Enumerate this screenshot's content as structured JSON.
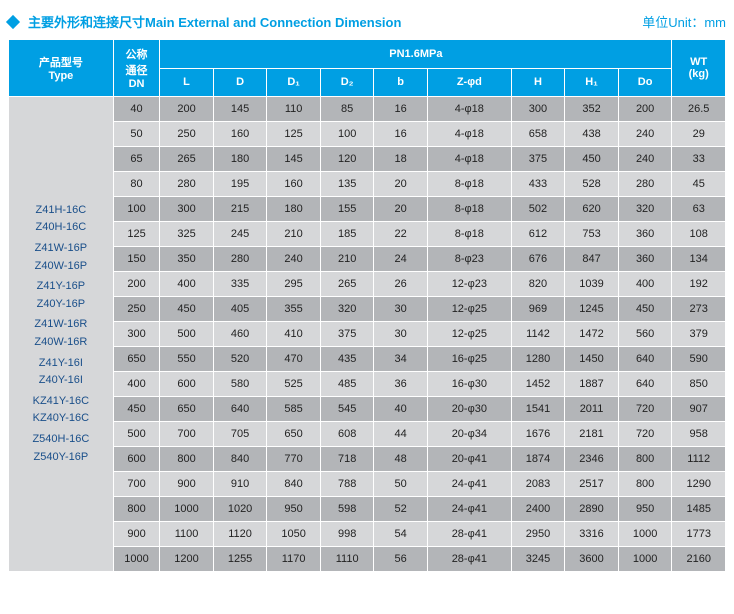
{
  "title": {
    "main": "主要外形和连接尺寸Main External and Connection Dimension",
    "unit": "单位Unit：mm"
  },
  "header": {
    "type": "产品型号\nType",
    "dn": "公称\n通径\nDN",
    "group": "PN1.6MPa",
    "wt": "WT\n(kg)",
    "cols": [
      "L",
      "D",
      "D₁",
      "D₂",
      "b",
      "Z-φd",
      "H",
      "H₁",
      "Do"
    ]
  },
  "types": [
    [
      "Z41H-16C",
      "Z40H-16C"
    ],
    [
      "Z41W-16P",
      "Z40W-16P"
    ],
    [
      "Z41Y-16P",
      "Z40Y-16P"
    ],
    [
      "Z41W-16R",
      "Z40W-16R"
    ],
    [
      "Z41Y-16I",
      "Z40Y-16I"
    ],
    [
      "KZ41Y-16C",
      "KZ40Y-16C"
    ],
    [
      "Z540H-16C",
      "Z540Y-16P"
    ]
  ],
  "rows": [
    {
      "dn": "40",
      "L": "200",
      "D": "145",
      "D1": "110",
      "D2": "85",
      "b": "16",
      "Z": "4-φ18",
      "H": "300",
      "H1": "352",
      "Do": "200",
      "WT": "26.5"
    },
    {
      "dn": "50",
      "L": "250",
      "D": "160",
      "D1": "125",
      "D2": "100",
      "b": "16",
      "Z": "4-φ18",
      "H": "658",
      "H1": "438",
      "Do": "240",
      "WT": "29"
    },
    {
      "dn": "65",
      "L": "265",
      "D": "180",
      "D1": "145",
      "D2": "120",
      "b": "18",
      "Z": "4-φ18",
      "H": "375",
      "H1": "450",
      "Do": "240",
      "WT": "33"
    },
    {
      "dn": "80",
      "L": "280",
      "D": "195",
      "D1": "160",
      "D2": "135",
      "b": "20",
      "Z": "8-φ18",
      "H": "433",
      "H1": "528",
      "Do": "280",
      "WT": "45"
    },
    {
      "dn": "100",
      "L": "300",
      "D": "215",
      "D1": "180",
      "D2": "155",
      "b": "20",
      "Z": "8-φ18",
      "H": "502",
      "H1": "620",
      "Do": "320",
      "WT": "63"
    },
    {
      "dn": "125",
      "L": "325",
      "D": "245",
      "D1": "210",
      "D2": "185",
      "b": "22",
      "Z": "8-φ18",
      "H": "612",
      "H1": "753",
      "Do": "360",
      "WT": "108"
    },
    {
      "dn": "150",
      "L": "350",
      "D": "280",
      "D1": "240",
      "D2": "210",
      "b": "24",
      "Z": "8-φ23",
      "H": "676",
      "H1": "847",
      "Do": "360",
      "WT": "134"
    },
    {
      "dn": "200",
      "L": "400",
      "D": "335",
      "D1": "295",
      "D2": "265",
      "b": "26",
      "Z": "12-φ23",
      "H": "820",
      "H1": "1039",
      "Do": "400",
      "WT": "192"
    },
    {
      "dn": "250",
      "L": "450",
      "D": "405",
      "D1": "355",
      "D2": "320",
      "b": "30",
      "Z": "12-φ25",
      "H": "969",
      "H1": "1245",
      "Do": "450",
      "WT": "273"
    },
    {
      "dn": "300",
      "L": "500",
      "D": "460",
      "D1": "410",
      "D2": "375",
      "b": "30",
      "Z": "12-φ25",
      "H": "1142",
      "H1": "1472",
      "Do": "560",
      "WT": "379"
    },
    {
      "dn": "650",
      "L": "550",
      "D": "520",
      "D1": "470",
      "D2": "435",
      "b": "34",
      "Z": "16-φ25",
      "H": "1280",
      "H1": "1450",
      "Do": "640",
      "WT": "590"
    },
    {
      "dn": "400",
      "L": "600",
      "D": "580",
      "D1": "525",
      "D2": "485",
      "b": "36",
      "Z": "16-φ30",
      "H": "1452",
      "H1": "1887",
      "Do": "640",
      "WT": "850"
    },
    {
      "dn": "450",
      "L": "650",
      "D": "640",
      "D1": "585",
      "D2": "545",
      "b": "40",
      "Z": "20-φ30",
      "H": "1541",
      "H1": "2011",
      "Do": "720",
      "WT": "907"
    },
    {
      "dn": "500",
      "L": "700",
      "D": "705",
      "D1": "650",
      "D2": "608",
      "b": "44",
      "Z": "20-φ34",
      "H": "1676",
      "H1": "2181",
      "Do": "720",
      "WT": "958"
    },
    {
      "dn": "600",
      "L": "800",
      "D": "840",
      "D1": "770",
      "D2": "718",
      "b": "48",
      "Z": "20-φ41",
      "H": "1874",
      "H1": "2346",
      "Do": "800",
      "WT": "1112"
    },
    {
      "dn": "700",
      "L": "900",
      "D": "910",
      "D1": "840",
      "D2": "788",
      "b": "50",
      "Z": "24-φ41",
      "H": "2083",
      "H1": "2517",
      "Do": "800",
      "WT": "1290"
    },
    {
      "dn": "800",
      "L": "1000",
      "D": "1020",
      "D1": "950",
      "D2": "598",
      "b": "52",
      "Z": "24-φ41",
      "H": "2400",
      "H1": "2890",
      "Do": "950",
      "WT": "1485"
    },
    {
      "dn": "900",
      "L": "1100",
      "D": "1120",
      "D1": "1050",
      "D2": "998",
      "b": "54",
      "Z": "28-φ41",
      "H": "2950",
      "H1": "3316",
      "Do": "1000",
      "WT": "1773"
    },
    {
      "dn": "1000",
      "L": "1200",
      "D": "1255",
      "D1": "1170",
      "D2": "1110",
      "b": "56",
      "Z": "28-φ41",
      "H": "3245",
      "H1": "3600",
      "Do": "1000",
      "WT": "2160"
    }
  ],
  "colors": {
    "accent": "#009fe3",
    "dark_row": "#b3b5b8",
    "light_row": "#d6d7d9",
    "type_text": "#1a4f8a"
  }
}
